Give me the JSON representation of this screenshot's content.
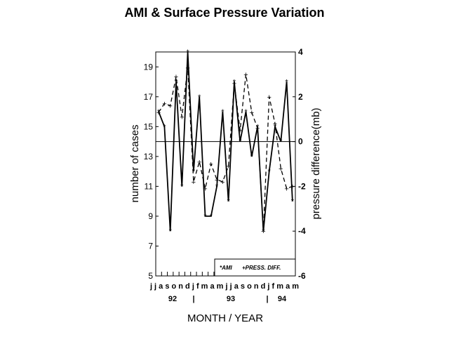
{
  "chart_data": {
    "type": "line",
    "title": "AMI & Surface Pressure Variation",
    "xlabel": "MONTH / YEAR",
    "ylabel_left": "number of cases",
    "ylabel_right": "pressure difference(mb)",
    "ylim_left": [
      5,
      20
    ],
    "ylim_right": [
      -6,
      4
    ],
    "yticks_left": [
      "5",
      "7",
      "9",
      "11",
      "13",
      "15",
      "17",
      "19"
    ],
    "yticks_right": [
      "-6",
      "-4",
      "-2",
      "0",
      "2",
      "4"
    ],
    "categories": [
      "j",
      "j",
      "a",
      "s",
      "o",
      "n",
      "d",
      "j",
      "f",
      "m",
      "a",
      "m",
      "j",
      "j",
      "a",
      "s",
      "o",
      "n",
      "d",
      "j",
      "f",
      "m",
      "a",
      "m"
    ],
    "month_row": "j j a s o n d j f m a m j j a s o n d j f m a m",
    "year_labels": [
      "92",
      "|",
      "93",
      "|",
      "94"
    ],
    "series": [
      {
        "name": "AMI",
        "axis": "left",
        "style": "solid",
        "marker": "*",
        "values": [
          16,
          15,
          8,
          18,
          11,
          20,
          12,
          17,
          9,
          9,
          11,
          16,
          10,
          18,
          14,
          16,
          13,
          15,
          8,
          12,
          15,
          14,
          18,
          10
        ]
      },
      {
        "name": "PRESS. DIFF.",
        "axis": "right",
        "style": "dashed",
        "marker": "+",
        "values": [
          1.3,
          1.7,
          1.6,
          2.9,
          1.1,
          3.3,
          -1.8,
          -0.9,
          -2.1,
          -1.0,
          -1.7,
          -1.8,
          -1.1,
          2.6,
          0.5,
          3.0,
          1.3,
          0.6,
          -4.0,
          2.0,
          0.8,
          -1.2,
          -2.1,
          -2.0
        ]
      }
    ],
    "zero_line_right": 0,
    "legend": {
      "position": "bottom-right",
      "entries": [
        "*AMI",
        "+PRESS. DIFF."
      ]
    },
    "grid": false
  }
}
